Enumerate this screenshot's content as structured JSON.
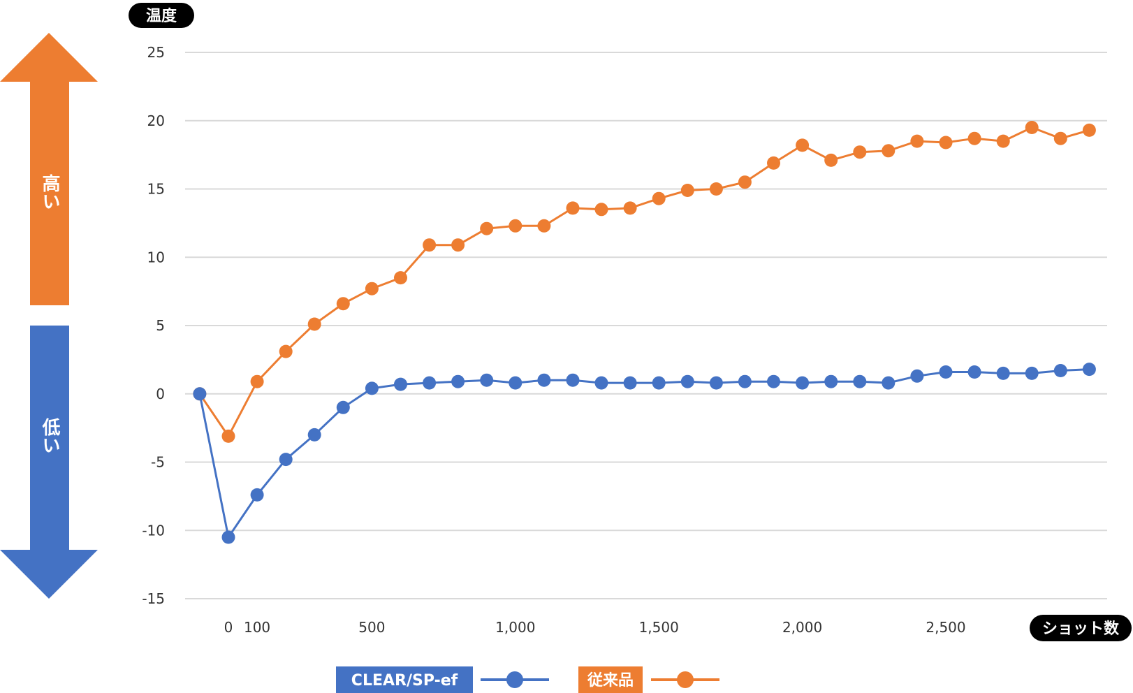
{
  "chart_data": {
    "type": "line",
    "ylabel": "温度",
    "xlabel": "ショット数",
    "ylim": [
      -15,
      25
    ],
    "yticks": [
      "25",
      "20",
      "15",
      "10",
      "5",
      "0",
      "-5",
      "-10",
      "-15"
    ],
    "ytick_values": [
      25,
      20,
      15,
      10,
      5,
      0,
      -5,
      -10,
      -15
    ],
    "xticks": [
      {
        "label": "0",
        "value": 0
      },
      {
        "label": "100",
        "value": 100
      },
      {
        "label": "500",
        "value": 500
      },
      {
        "label": "1,000",
        "value": 1000
      },
      {
        "label": "1,500",
        "value": 1500
      },
      {
        "label": "2,000",
        "value": 2000
      },
      {
        "label": "2,500",
        "value": 2500
      }
    ],
    "x": [
      -100,
      0,
      100,
      200,
      300,
      400,
      500,
      600,
      700,
      800,
      900,
      1000,
      1100,
      1200,
      1300,
      1400,
      1500,
      1600,
      1700,
      1800,
      1900,
      2000,
      2100,
      2200,
      2300,
      2400,
      2500,
      2600,
      2700,
      2800,
      2900,
      3000
    ],
    "series": [
      {
        "name": "CLEAR/SP-ef",
        "color": "#4472C4",
        "values": [
          0,
          -10.5,
          -7.4,
          -4.8,
          -3.0,
          -1.0,
          0.4,
          0.7,
          0.8,
          0.9,
          1.0,
          0.8,
          1.0,
          1.0,
          0.8,
          0.8,
          0.8,
          0.9,
          0.8,
          0.9,
          0.9,
          0.8,
          0.9,
          0.9,
          0.8,
          1.3,
          1.6,
          1.6,
          1.5,
          1.5,
          1.7,
          1.8
        ]
      },
      {
        "name": "従来品",
        "color": "#ED7D31",
        "values": [
          0,
          -3.1,
          0.9,
          3.1,
          5.1,
          6.6,
          7.7,
          8.5,
          10.9,
          10.9,
          12.1,
          12.3,
          12.3,
          13.6,
          13.5,
          13.6,
          14.3,
          14.9,
          15.0,
          15.5,
          16.9,
          18.2,
          17.1,
          17.7,
          17.8,
          18.5,
          18.4,
          18.7,
          18.5,
          19.5,
          18.7,
          19.3
        ]
      }
    ],
    "arrows": {
      "up_label": "高い",
      "down_label": "低い",
      "up_color": "#ED7D31",
      "down_color": "#4472C4"
    },
    "grid": true,
    "legend": "bottom"
  }
}
